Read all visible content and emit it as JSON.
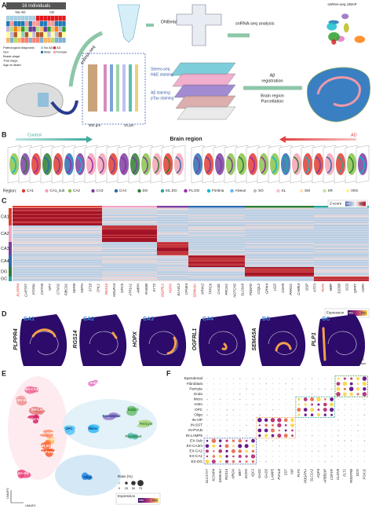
{
  "panels": {
    "a": {
      "label": "A",
      "cohort": "16 individuals",
      "no_ad": "No AD",
      "ad": "AD",
      "legend": [
        "Pathological diagnosis",
        "Sex",
        "Braak stage",
        "Thal stage",
        "Age at death"
      ],
      "legend_keys": [
        "No AD",
        "AD",
        "Male",
        "Female"
      ],
      "steps": [
        "snRNA-seq",
        "DNBelab C4",
        "snRNA-seq analysis",
        "snRNA-seq UMAP"
      ],
      "stains": [
        "Stereo-seq",
        "H&E staining",
        "Aβ staining",
        "pTau staining"
      ],
      "registration": [
        "Aβ",
        "registration",
        "Brain region",
        "Parcellation"
      ],
      "scales": [
        "500 µm",
        "10 µm"
      ]
    },
    "b": {
      "label": "B",
      "control": "Control",
      "title": "Brain region",
      "ad": "AD",
      "region_label": "Region:",
      "regions": [
        "CA1",
        "CA1_sub",
        "CA2",
        "CA3",
        "CA4",
        "DG",
        "ML.DG",
        "PL.DG",
        "Fimbria",
        "Alveus",
        "SO",
        "SL",
        "SM",
        "SR",
        "VES"
      ]
    },
    "c": {
      "label": "C",
      "rows": [
        "CA1",
        "CA2",
        "CA3",
        "CA4",
        "DG",
        "GC"
      ],
      "zscore": "Z-score",
      "min": "Min",
      "max": "Max",
      "genes": [
        "PLPPR4",
        "CARTPT",
        "PTPRK",
        "CNTN5",
        "NPY",
        "CTXN1",
        "FIBCD1",
        "NEFM",
        "NEFH",
        "ST18",
        "CHL1",
        "RGS14",
        "NDUFA4",
        "GPC5",
        "ATP1A1",
        "AMPH",
        "RAB3B",
        "SYT2",
        "OGFRL1",
        "HOPX",
        "ELAVL2",
        "CPNE4",
        "SEMA5A",
        "NR4A2",
        "TRPC6",
        "CALB1",
        "PROX1",
        "NOTCH2",
        "SLC6A8",
        "PDGFD",
        "C1QL2",
        "GRIK4",
        "LGI2",
        "CDH9",
        "PRKG1",
        "CAMK4",
        "DSP",
        "NTF3",
        "PLP1",
        "MBP",
        "S100B",
        "SCD",
        "QPRT",
        "ASPA"
      ]
    },
    "d": {
      "label": "D",
      "regions": [
        "CA1",
        "CA2",
        "CA3",
        "CA4",
        "DG",
        "GC"
      ],
      "genes": [
        "PLPPR4",
        "RGS14",
        "HOPX",
        "OGFRL1",
        "SEMA5A",
        "PLP1"
      ],
      "expression": "Expression",
      "min": "Min",
      "max": "Max",
      "scale": "2 mm"
    },
    "e": {
      "label": "E",
      "clusters": [
        "Astro",
        "EX-CA3/4",
        "EX-Sub",
        "EX-CA2",
        "EX-CA1",
        "IN-LAMP5",
        "IN-VIP",
        "IN-SST",
        "IN-PVALB",
        "EX-DG",
        "OPC",
        "Micro",
        "Ependemal",
        "Endo",
        "Pericyte",
        "Fibroblast",
        "Oligo"
      ],
      "x_axis": "UMAP1",
      "y_axis": "UMAP2"
    },
    "f": {
      "label": "F",
      "rows": [
        "Ependemal",
        "Fibroblast",
        "Pericyte",
        "Endo",
        "Micro",
        "Astro",
        "OPC",
        "Oligo",
        "IN-VIP",
        "IN-SST",
        "IN-PVLB",
        "IN-LAMP5",
        "EX-Sub",
        "EX-CA3/4",
        "EX-CA2",
        "EX-CA1",
        "EX-DG"
      ],
      "genes": [
        "SLC17A7",
        "KCNIP4",
        "SEMA5A",
        "RGS14",
        "NRGN",
        "MET",
        "SCGN",
        "IQCJ",
        "GAD1",
        "GAD2",
        "LAMP5",
        "PVALB",
        "SST",
        "VIP",
        "PLP1",
        "PDGFRA",
        "SLC1A2",
        "AQP4",
        "APBB1IP",
        "CSF1R",
        "CLDN5",
        "FLT1",
        "PDGFRB",
        "DCN",
        "FOXJ1"
      ],
      "expression": "Expression",
      "min": "Min",
      "max": "Max",
      "ratio": "Ratio (%)",
      "ratio_ticks": [
        "0",
        "25",
        "50",
        "75"
      ]
    }
  }
}
